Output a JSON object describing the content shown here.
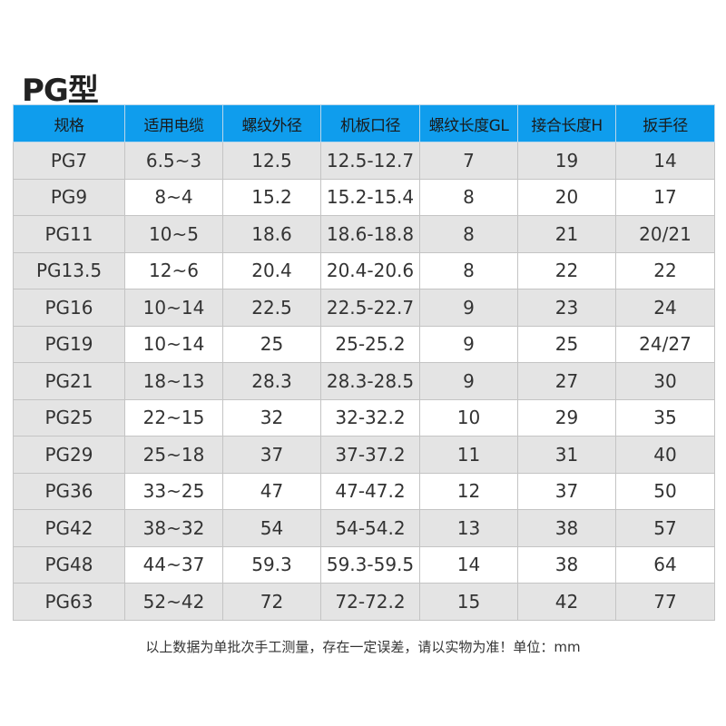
{
  "title": "PG型",
  "headers": [
    "规格",
    "适用电缆",
    "螺纹外径",
    "机板口径",
    "螺纹长度GL",
    "接合长度H",
    "扳手径"
  ],
  "rows": [
    [
      "PG7",
      "6.5~3",
      "12.5",
      "12.5-12.7",
      "7",
      "19",
      "14"
    ],
    [
      "PG9",
      "8~4",
      "15.2",
      "15.2-15.4",
      "8",
      "20",
      "17"
    ],
    [
      "PG11",
      "10~5",
      "18.6",
      "18.6-18.8",
      "8",
      "21",
      "20/21"
    ],
    [
      "PG13.5",
      "12~6",
      "20.4",
      "20.4-20.6",
      "8",
      "22",
      "22"
    ],
    [
      "PG16",
      "10~14",
      "22.5",
      "22.5-22.7",
      "9",
      "23",
      "24"
    ],
    [
      "PG19",
      "10~14",
      "25",
      "25-25.2",
      "9",
      "25",
      "24/27"
    ],
    [
      "PG21",
      "18~13",
      "28.3",
      "28.3-28.5",
      "9",
      "27",
      "30"
    ],
    [
      "PG25",
      "22~15",
      "32",
      "32-32.2",
      "10",
      "29",
      "35"
    ],
    [
      "PG29",
      "25~18",
      "37",
      "37-37.2",
      "11",
      "31",
      "40"
    ],
    [
      "PG36",
      "33~25",
      "47",
      "47-47.2",
      "12",
      "37",
      "50"
    ],
    [
      "PG42",
      "38~32",
      "54",
      "54-54.2",
      "13",
      "38",
      "57"
    ],
    [
      "PG48",
      "44~37",
      "59.3",
      "59.3-59.5",
      "14",
      "38",
      "64"
    ],
    [
      "PG63",
      "52~42",
      "72",
      "72-72.2",
      "15",
      "42",
      "77"
    ]
  ],
  "note": "以上数据为单批次手工测量，存在一定误差，请以实物为准！单位：mm",
  "colors": {
    "header": "#0f9ded",
    "stripe": "#e4e4e4"
  }
}
